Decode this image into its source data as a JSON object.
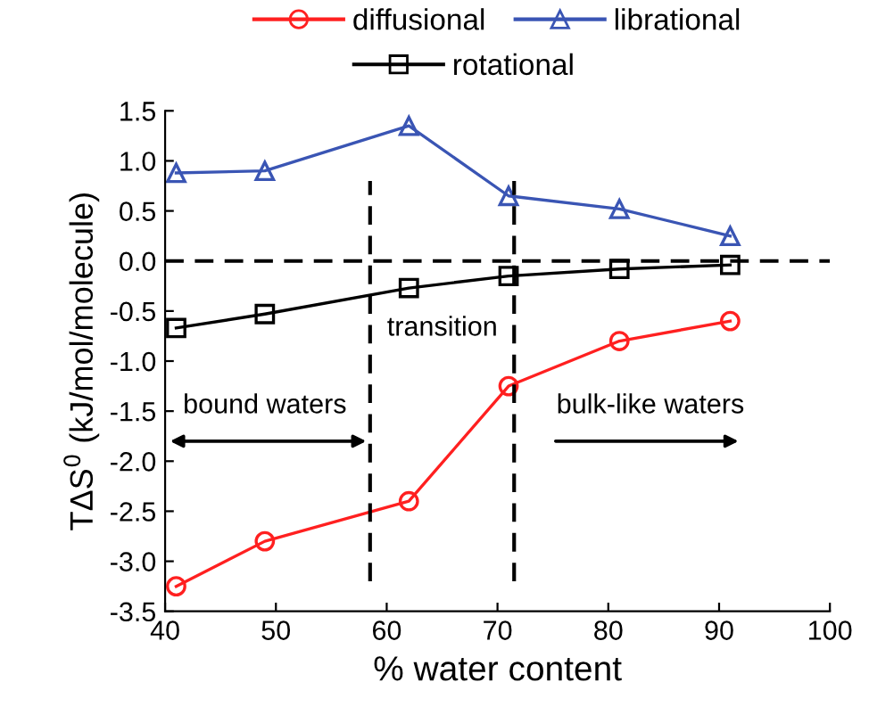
{
  "chart_data": {
    "type": "line",
    "xlabel": "% water content",
    "ylabel": "TΔS$^{0}$ (kJ/mol/molecule)",
    "x": [
      41,
      49,
      62,
      71,
      81,
      91
    ],
    "series": [
      {
        "name": "diffusional",
        "color": "#ff2020",
        "marker": "circle",
        "values": [
          -3.25,
          -2.8,
          -2.4,
          -1.25,
          -0.8,
          -0.6
        ]
      },
      {
        "name": "librational",
        "color": "#3a55b4",
        "marker": "triangle",
        "values": [
          0.88,
          0.9,
          1.35,
          0.65,
          0.52,
          0.25
        ]
      },
      {
        "name": "rotational",
        "color": "#000000",
        "marker": "square",
        "values": [
          -0.67,
          -0.53,
          -0.27,
          -0.15,
          -0.08,
          -0.04
        ]
      }
    ],
    "xlim": [
      40,
      100
    ],
    "xticks": [
      40,
      50,
      60,
      70,
      80,
      90,
      100
    ],
    "ylim": [
      -3.5,
      1.5
    ],
    "yticks": [
      {
        "value": -3.5,
        "label": "-3.5"
      },
      {
        "value": -3.0,
        "label": "-3.0"
      },
      {
        "value": -2.5,
        "label": "-2.5"
      },
      {
        "value": -2.0,
        "label": "-2.0"
      },
      {
        "value": -1.5,
        "label": "-1.5"
      },
      {
        "value": -1.0,
        "label": "-1.0"
      },
      {
        "value": -0.5,
        "label": "-0.5"
      },
      {
        "value": 0,
        "label": "0.0"
      },
      {
        "value": 0.5,
        "label": "0.5"
      },
      {
        "value": 1.0,
        "label": "1.0"
      },
      {
        "value": 1.5,
        "label": "1.5"
      }
    ],
    "ref_lines": [
      {
        "axis": "y",
        "value": 0,
        "color": "#000000",
        "line_style": "dashed"
      },
      {
        "axis": "x",
        "value": 58.5,
        "color": "#000000",
        "line_style": "dashed"
      },
      {
        "axis": "x",
        "value": 71.5,
        "color": "#000000",
        "line_style": "dashed"
      }
    ],
    "annotations": [
      "bound waters",
      "transition",
      "bulk-like waters"
    ],
    "grid": false,
    "legend": "top"
  }
}
